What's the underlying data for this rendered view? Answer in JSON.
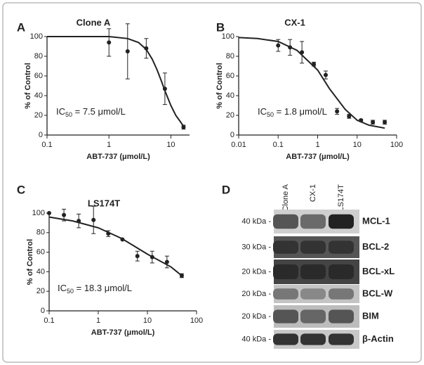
{
  "chart_data": [
    {
      "type": "scatter",
      "panel": "A",
      "title": "Clone A",
      "ylabel": "% of Control",
      "xlabel": "ABT-737 (μmol/L)",
      "ic50_label": [
        "IC",
        "50",
        " = 7.5 μmol/L"
      ],
      "log_x": true,
      "xlim": [
        0.1,
        20
      ],
      "xticks": [
        0.1,
        1,
        10
      ],
      "ylim": [
        0,
        100
      ],
      "yticks": [
        0,
        20,
        40,
        60,
        80,
        100
      ],
      "x": [
        1,
        2,
        4,
        8,
        16
      ],
      "values": [
        94,
        85,
        88,
        47,
        8
      ],
      "errors": [
        14,
        28,
        10,
        16,
        2
      ],
      "fit": {
        "x": [
          0.1,
          1,
          2,
          3,
          4,
          5,
          6,
          7,
          8,
          10,
          12,
          16
        ],
        "y": [
          100,
          100,
          98,
          94,
          87,
          77,
          66,
          55,
          45,
          30,
          20,
          9
        ]
      }
    },
    {
      "type": "scatter",
      "panel": "B",
      "title": "CX-1",
      "ylabel": "% of Control",
      "xlabel": "ABT-737 (μmol/L)",
      "ic50_label": [
        "IC",
        "50",
        " = 1.8 μmol/L"
      ],
      "log_x": true,
      "xlim": [
        0.01,
        100
      ],
      "xticks": [
        0.01,
        0.1,
        1,
        10,
        100
      ],
      "ylim": [
        0,
        100
      ],
      "yticks": [
        0,
        20,
        40,
        60,
        80,
        100
      ],
      "x": [
        0.1,
        0.2,
        0.4,
        0.8,
        1.6,
        3.1,
        6.25,
        12.5,
        25,
        50
      ],
      "values": [
        91,
        89,
        84,
        72,
        61,
        24,
        19,
        15,
        13,
        13
      ],
      "errors": [
        6,
        8,
        11,
        2,
        4,
        3,
        2,
        1,
        2,
        2
      ],
      "fit": {
        "x": [
          0.01,
          0.03,
          0.1,
          0.3,
          1,
          2,
          5,
          10,
          20,
          50
        ],
        "y": [
          99,
          98,
          95,
          86,
          66,
          47,
          26,
          15,
          10,
          7
        ]
      }
    },
    {
      "type": "scatter",
      "panel": "C",
      "title": "LS174T",
      "ylabel": "% of Control",
      "xlabel": "ABT-737 (μmol/L)",
      "ic50_label": [
        "IC",
        "50",
        " = 18.3 μmol/L"
      ],
      "log_x": true,
      "xlim": [
        0.1,
        100
      ],
      "xticks": [
        0.1,
        1,
        10,
        100
      ],
      "ylim": [
        0,
        100
      ],
      "yticks": [
        0,
        20,
        40,
        60,
        80,
        100
      ],
      "x": [
        0.1,
        0.2,
        0.4,
        0.8,
        1.6,
        3.1,
        6.25,
        12.5,
        25,
        50
      ],
      "values": [
        100,
        98,
        92,
        93,
        79,
        73,
        56,
        55,
        50,
        36
      ],
      "errors": [
        0,
        6,
        7,
        14,
        3,
        0,
        5,
        6,
        6,
        2
      ],
      "fit": {
        "x": [
          0.1,
          0.3,
          1,
          3,
          10,
          30,
          50
        ],
        "y": [
          96,
          92,
          85,
          74,
          58,
          45,
          36
        ]
      }
    }
  ],
  "blot": {
    "panel": "D",
    "lanes": [
      "Clone A",
      "CX-1",
      "LS174T"
    ],
    "rows": [
      {
        "size": "40 kDa -",
        "protein": "MCL-1"
      },
      {
        "size": "30 kDa -",
        "protein": "BCL-2"
      },
      {
        "size": "20 kDa -",
        "protein": "BCL-xL"
      },
      {
        "size": "20 kDa -",
        "protein": "BCL-W"
      },
      {
        "size": "20 kDa -",
        "protein": "BIM"
      },
      {
        "size": "40 kDa -",
        "protein": "β-Actin"
      }
    ]
  }
}
